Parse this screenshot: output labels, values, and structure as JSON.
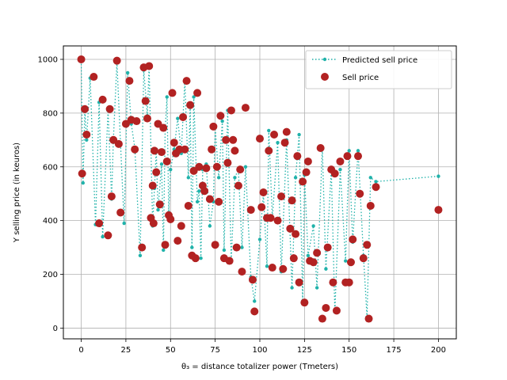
{
  "chart_data": {
    "type": "scatter",
    "xlabel": "θ₃ = distance totalizer power (Tmeters)",
    "ylabel": "Y selling price (in keuros)",
    "xlim": [
      -10,
      210
    ],
    "ylim": [
      -40,
      1050
    ],
    "xticks": [
      0,
      25,
      50,
      75,
      100,
      125,
      150,
      175,
      200
    ],
    "yticks": [
      0,
      200,
      400,
      600,
      800,
      1000
    ],
    "grid": true,
    "legend_position": "top-right",
    "series": [
      {
        "name": "Predicted sell price",
        "style": "dotted-line-with-dots",
        "color": "#20b2aa",
        "x": [
          0,
          1,
          2,
          3,
          5,
          8,
          10,
          12,
          15,
          17,
          18,
          20,
          22,
          24,
          26,
          28,
          30,
          33,
          35,
          37,
          38,
          40,
          41,
          42,
          43,
          45,
          46,
          47,
          48,
          49,
          50,
          52,
          54,
          56,
          58,
          60,
          61,
          62,
          63,
          65,
          66,
          67,
          68,
          70,
          72,
          74,
          75,
          77,
          79,
          80,
          82,
          84,
          86,
          88,
          90,
          92,
          95,
          97,
          100,
          102,
          104,
          105,
          107,
          110,
          112,
          115,
          118,
          120,
          122,
          124,
          125,
          127,
          130,
          132,
          135,
          137,
          140,
          142,
          145,
          148,
          150,
          152,
          155,
          158,
          160,
          162,
          165,
          200
        ],
        "y": [
          995,
          540,
          810,
          700,
          930,
          385,
          840,
          340,
          810,
          480,
          700,
          990,
          690,
          390,
          950,
          760,
          670,
          270,
          960,
          790,
          975,
          380,
          520,
          665,
          440,
          610,
          290,
          740,
          860,
          430,
          590,
          665,
          780,
          650,
          920,
          560,
          830,
          300,
          860,
          470,
          510,
          260,
          590,
          610,
          380,
          470,
          750,
          560,
          770,
          290,
          810,
          250,
          560,
          590,
          300,
          600,
          190,
          100,
          330,
          500,
          230,
          735,
          410,
          690,
          210,
          700,
          150,
          560,
          720,
          100,
          570,
          270,
          380,
          150,
          670,
          220,
          590,
          60,
          590,
          250,
          660,
          320,
          660,
          270,
          40,
          560,
          545,
          565
        ]
      },
      {
        "name": "Sell price",
        "style": "dot",
        "color": "#b22222",
        "x": [
          0,
          0.5,
          2,
          3,
          7,
          10,
          12,
          15,
          16,
          17,
          18,
          20,
          21,
          22,
          25,
          27,
          28,
          30,
          31,
          34,
          35,
          36,
          37,
          38,
          39,
          40,
          40.5,
          41,
          42,
          43,
          44,
          45,
          46,
          47,
          48,
          49,
          50,
          51,
          52,
          53,
          54,
          55,
          56,
          57,
          58,
          59,
          60,
          61,
          62,
          63,
          64,
          65,
          66,
          68,
          69,
          70,
          72,
          73,
          74,
          75,
          76,
          77,
          78,
          80,
          81,
          82,
          83,
          84,
          85,
          86,
          87,
          88,
          89,
          90,
          92,
          95,
          96,
          97,
          100,
          101,
          102,
          104,
          105,
          106,
          107,
          108,
          110,
          112,
          113,
          114,
          115,
          117,
          118,
          119,
          120,
          121,
          122,
          124,
          125,
          126,
          127,
          128,
          130,
          132,
          134,
          135,
          137,
          138,
          140,
          141,
          142,
          143,
          145,
          148,
          149,
          150,
          151,
          152,
          155,
          156,
          158,
          160,
          161,
          162,
          165,
          200
        ],
        "y": [
          1000,
          575,
          815,
          720,
          935,
          390,
          850,
          345,
          815,
          490,
          700,
          995,
          685,
          430,
          760,
          920,
          775,
          665,
          770,
          300,
          970,
          845,
          780,
          975,
          410,
          530,
          390,
          660,
          580,
          760,
          460,
          655,
          745,
          310,
          620,
          420,
          405,
          875,
          690,
          650,
          325,
          665,
          380,
          785,
          665,
          920,
          455,
          830,
          270,
          585,
          260,
          875,
          600,
          530,
          510,
          595,
          480,
          665,
          750,
          310,
          600,
          470,
          790,
          260,
          700,
          615,
          250,
          810,
          700,
          660,
          300,
          530,
          590,
          210,
          820,
          440,
          180,
          62,
          705,
          450,
          505,
          410,
          660,
          410,
          225,
          720,
          400,
          490,
          220,
          690,
          730,
          370,
          475,
          260,
          350,
          640,
          170,
          545,
          95,
          580,
          620,
          250,
          245,
          280,
          670,
          35,
          75,
          300,
          590,
          170,
          575,
          65,
          620,
          170,
          640,
          170,
          245,
          330,
          640,
          500,
          260,
          310,
          35,
          455,
          525,
          440
        ]
      }
    ]
  }
}
